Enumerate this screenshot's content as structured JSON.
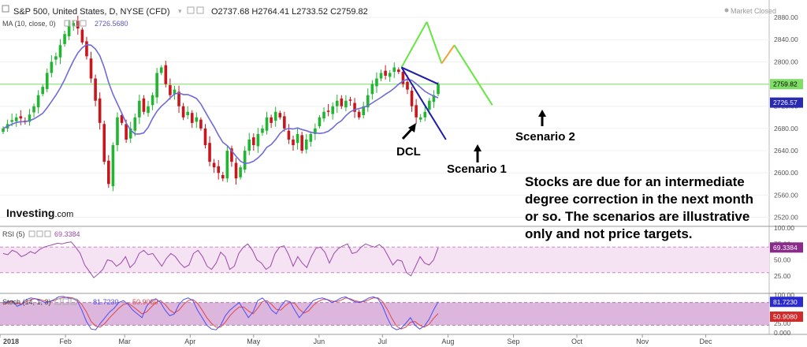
{
  "header": {
    "symbol_title": "S&P 500, United States, D, NYSE (CFD)",
    "ohlc": [
      {
        "label": "O",
        "value": "2737.68"
      },
      {
        "label": "H",
        "value": "2764.41"
      },
      {
        "label": "L",
        "value": "2733.52"
      },
      {
        "label": "C",
        "value": "2759.82"
      }
    ],
    "market_status": "Market Closed",
    "ma_label": "MA (10, close, 0)",
    "ma_value": "2726.5680"
  },
  "brand": {
    "name": "Investing",
    "suffix": ".com"
  },
  "annotations": {
    "dcl": "DCL",
    "scenario1": "Scenario 1",
    "scenario2": "Scenario 2",
    "commentary": [
      "Stocks are due for an intermediate",
      "degree correction in the next month",
      "or so. The scenarios are illustrative",
      "only and not price targets."
    ]
  },
  "colors": {
    "up": "#21b531",
    "down": "#c8161d",
    "ma": "#6f6bd8",
    "price_line": "#7fde65",
    "scenario1": "#1c1ca8",
    "scenario2": "#66e640",
    "scenario2_dip": "#f5a033",
    "rsi": "#9b4aa8",
    "stoch_k": "#4d4df0",
    "stoch_d": "#e04848"
  },
  "chart_data": [
    {
      "type": "candlestick",
      "title": "S&P 500, United States, D, NYSE (CFD)",
      "y_ticks": [
        2520,
        2560,
        2600,
        2640,
        2680,
        2720,
        2760,
        2800,
        2840,
        2880
      ],
      "y_range": [
        2508,
        2900
      ],
      "x_ticks": [
        "2018",
        "Feb",
        "Mar",
        "Apr",
        "May",
        "Jun",
        "Jul",
        "Aug",
        "Sep",
        "Oct",
        "Nov",
        "Dec"
      ],
      "x_range": [
        "2018-01-01",
        "2018-12-31"
      ],
      "price_labels": [
        {
          "value": 2759.82,
          "label": "2759.82"
        },
        {
          "value": 2726.57,
          "label": "2726.57"
        }
      ],
      "closes": [
        2680,
        2688,
        2695,
        2700,
        2698,
        2692,
        2705,
        2720,
        2740,
        2755,
        2780,
        2800,
        2810,
        2830,
        2850,
        2865,
        2870,
        2860,
        2835,
        2810,
        2770,
        2730,
        2690,
        2620,
        2580,
        2650,
        2700,
        2690,
        2660,
        2680,
        2700,
        2730,
        2710,
        2720,
        2740,
        2780,
        2790,
        2760,
        2740,
        2750,
        2720,
        2700,
        2710,
        2690,
        2700,
        2680,
        2650,
        2620,
        2610,
        2600,
        2590,
        2640,
        2620,
        2590,
        2610,
        2640,
        2660,
        2650,
        2670,
        2680,
        2700,
        2690,
        2710,
        2700,
        2680,
        2660,
        2650,
        2670,
        2640,
        2660,
        2670,
        2680,
        2700,
        2710,
        2710,
        2720,
        2730,
        2720,
        2730,
        2730,
        2710,
        2700,
        2720,
        2740,
        2760,
        2770,
        2780,
        2775,
        2780,
        2790,
        2782,
        2760,
        2750,
        2720,
        2700,
        2700,
        2710,
        2730,
        2740,
        2760
      ],
      "series": [
        {
          "name": "MA (10, close, 0)",
          "last": 2726.568
        },
        {
          "name": "Scenario 1",
          "x": [
            "2018-07-10",
            "2018-07-31"
          ],
          "y": [
            2790,
            2660
          ]
        },
        {
          "name": "Scenario 2",
          "x": [
            "2018-07-10",
            "2018-07-22",
            "2018-07-29",
            "2018-08-04",
            "2018-08-22"
          ],
          "y": [
            2790,
            2872,
            2797,
            2830,
            2722
          ]
        }
      ]
    },
    {
      "type": "line",
      "title": "RSI (5)",
      "y_ticks": [
        25,
        50,
        75,
        100
      ],
      "y_range": [
        0,
        100
      ],
      "bands": [
        30,
        70
      ],
      "series": [
        {
          "name": "RSI (5)",
          "last": 69.3384,
          "label": "69.3384",
          "values": [
            60,
            58,
            65,
            62,
            55,
            58,
            63,
            60,
            66,
            70,
            72,
            74,
            76,
            75,
            77,
            78,
            70,
            60,
            42,
            32,
            22,
            28,
            35,
            50,
            48,
            40,
            45,
            55,
            38,
            45,
            60,
            65,
            58,
            60,
            50,
            40,
            52,
            60,
            55,
            45,
            38,
            42,
            60,
            65,
            55,
            40,
            35,
            45,
            62,
            55,
            35,
            40,
            60,
            70,
            75,
            65,
            50,
            45,
            35,
            40,
            60,
            70,
            72,
            58,
            40,
            55,
            45,
            38,
            55,
            68,
            70,
            62,
            45,
            60,
            68,
            72,
            75,
            60,
            62,
            70,
            75,
            72,
            70,
            74,
            68,
            55,
            42,
            50,
            48,
            30,
            25,
            40,
            55,
            45,
            42,
            50,
            69
          ]
        }
      ]
    },
    {
      "type": "line",
      "title": "Stoch (14, 1, 3)",
      "y_ticks": [
        0,
        25,
        50,
        75,
        100
      ],
      "y_range": [
        0,
        100
      ],
      "bands": [
        20,
        80
      ],
      "series": [
        {
          "name": "%K",
          "last": 81.723,
          "label": "81.7230",
          "values": [
            80,
            82,
            85,
            70,
            75,
            88,
            92,
            90,
            85,
            80,
            82,
            88,
            95,
            96,
            92,
            90,
            85,
            60,
            30,
            10,
            8,
            25,
            40,
            55,
            65,
            80,
            85,
            75,
            60,
            50,
            40,
            70,
            85,
            90,
            80,
            60,
            45,
            50,
            75,
            88,
            92,
            85,
            60,
            40,
            20,
            10,
            8,
            20,
            45,
            60,
            70,
            80,
            60,
            40,
            55,
            85,
            92,
            80,
            60,
            50,
            70,
            85,
            82,
            60,
            40,
            55,
            70,
            85,
            90,
            92,
            88,
            80,
            85,
            92,
            95,
            88,
            82,
            80,
            85,
            92,
            95,
            90,
            70,
            40,
            15,
            8,
            12,
            25,
            40,
            20,
            10,
            18,
            35,
            60,
            82
          ]
        },
        {
          "name": "%D",
          "last": 50.908,
          "label": "50.9080",
          "values": [
            75,
            80,
            82,
            78,
            76,
            82,
            88,
            90,
            88,
            84,
            82,
            85,
            90,
            93,
            94,
            92,
            88,
            75,
            55,
            30,
            18,
            15,
            25,
            40,
            52,
            65,
            75,
            78,
            70,
            60,
            50,
            55,
            68,
            80,
            85,
            75,
            60,
            52,
            60,
            75,
            85,
            88,
            78,
            60,
            40,
            25,
            15,
            15,
            28,
            45,
            58,
            68,
            68,
            58,
            50,
            65,
            82,
            85,
            75,
            62,
            60,
            72,
            80,
            78,
            62,
            52,
            58,
            72,
            82,
            88,
            88,
            84,
            82,
            86,
            92,
            90,
            85,
            82,
            82,
            87,
            92,
            92,
            82,
            62,
            38,
            18,
            10,
            15,
            28,
            30,
            20,
            15,
            22,
            38,
            51
          ]
        }
      ]
    }
  ]
}
